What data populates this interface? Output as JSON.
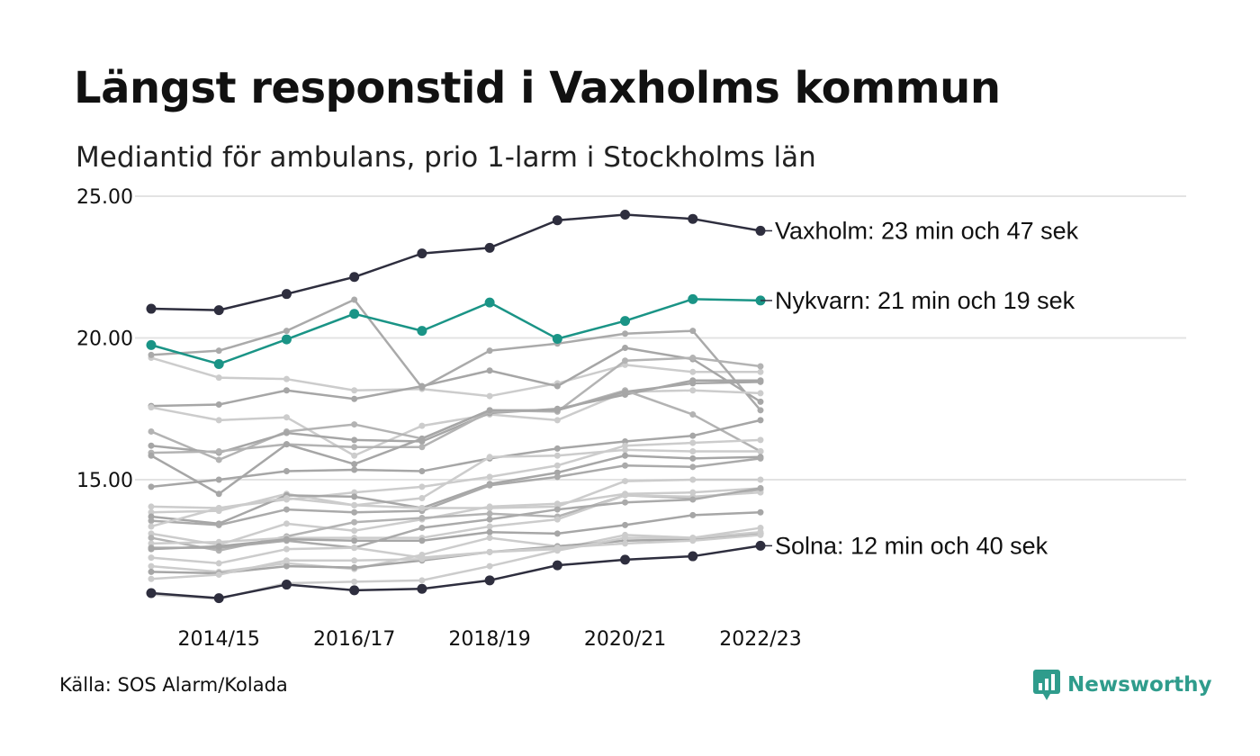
{
  "header": {
    "title": "Längst responstid i Vaxholms kommun",
    "subtitle": "Mediantid för ambulans, prio 1-larm i Stockholms län"
  },
  "footer": {
    "source": "Källa: SOS Alarm/Kolada",
    "brand": "Newsworthy"
  },
  "colors": {
    "dark": "#2e2e3e",
    "accent": "#1a9486",
    "grey_light": "#cccccc",
    "grey_dark": "#a6a6a6",
    "grid": "#e3e3e3",
    "brand": "#2f9c8c"
  },
  "icons": {
    "brand": "newsworthy-chart-bubble-icon"
  },
  "chart_data": {
    "type": "line",
    "x": [
      "2013/14",
      "2014/15",
      "2015/16",
      "2016/17",
      "2017/18",
      "2018/19",
      "2019/20",
      "2020/21",
      "2021/22",
      "2022/23"
    ],
    "x_tick_labels": [
      "2014/15",
      "2016/17",
      "2018/19",
      "2020/21",
      "2022/23"
    ],
    "ylim": [
      10.5,
      25.5
    ],
    "y_ticks": [
      15,
      20,
      25
    ],
    "y_tick_labels": [
      "15.00",
      "20.00",
      "25.00"
    ],
    "grid": true,
    "highlight_series": [
      {
        "name": "Vaxholm",
        "label": "Vaxholm: 23 min och 47 sek",
        "color": "#2e2e3e",
        "values": [
          21.03,
          20.98,
          21.55,
          22.15,
          22.98,
          23.18,
          24.15,
          24.35,
          24.2,
          23.78
        ]
      },
      {
        "name": "Nykvarn",
        "label": "Nykvarn: 21 min och 19 sek",
        "color": "#1a9486",
        "values": [
          19.75,
          19.08,
          19.95,
          20.85,
          20.25,
          21.25,
          19.97,
          20.6,
          21.37,
          21.32
        ]
      },
      {
        "name": "Solna",
        "label": "Solna: 12 min och 40 sek",
        "color": "#2e2e3e",
        "values": [
          11.0,
          10.82,
          11.3,
          11.1,
          11.15,
          11.45,
          11.98,
          12.18,
          12.3,
          12.67
        ]
      }
    ],
    "other_series": [
      {
        "values": [
          19.3,
          18.6,
          18.55,
          18.15,
          18.2,
          17.95,
          18.4,
          19.05,
          18.8,
          18.8
        ],
        "color": "#cccccc"
      },
      {
        "values": [
          19.4,
          19.55,
          20.25,
          21.35,
          18.25,
          19.55,
          19.8,
          20.15,
          20.25,
          17.45
        ],
        "color": "#aaaaaa"
      },
      {
        "values": [
          17.6,
          17.65,
          18.15,
          17.85,
          18.3,
          18.85,
          18.3,
          19.65,
          19.25,
          17.75
        ],
        "color": "#a6a6a6"
      },
      {
        "values": [
          17.55,
          17.1,
          17.2,
          15.85,
          16.9,
          17.3,
          17.1,
          18.1,
          18.15,
          18.05
        ],
        "color": "#cccccc"
      },
      {
        "values": [
          16.7,
          15.7,
          16.7,
          16.95,
          16.45,
          17.45,
          17.4,
          19.2,
          19.3,
          19.0
        ],
        "color": "#b3b3b3"
      },
      {
        "values": [
          16.2,
          15.95,
          16.65,
          16.4,
          16.35,
          17.35,
          17.5,
          18.0,
          18.5,
          18.5
        ],
        "color": "#a6a6a6"
      },
      {
        "values": [
          15.95,
          16.0,
          16.25,
          16.15,
          16.15,
          17.4,
          17.45,
          18.15,
          17.3,
          16.0
        ],
        "color": "#b3b3b3"
      },
      {
        "values": [
          15.85,
          14.5,
          16.25,
          15.55,
          16.45,
          17.45,
          17.45,
          18.1,
          18.4,
          18.45
        ],
        "color": "#a6a6a6"
      },
      {
        "values": [
          14.75,
          15.0,
          15.3,
          15.35,
          15.3,
          15.75,
          16.1,
          16.35,
          16.55,
          17.1
        ],
        "color": "#a6a6a6"
      },
      {
        "values": [
          14.05,
          14.0,
          14.3,
          14.55,
          14.75,
          15.1,
          15.5,
          16.2,
          16.3,
          16.4
        ],
        "color": "#cccccc"
      },
      {
        "values": [
          13.85,
          13.9,
          14.5,
          14.1,
          14.35,
          15.8,
          15.85,
          16.05,
          16.0,
          16.0
        ],
        "color": "#cccccc"
      },
      {
        "values": [
          13.7,
          13.45,
          14.45,
          14.4,
          14.0,
          14.85,
          15.25,
          15.85,
          15.75,
          15.8
        ],
        "color": "#a6a6a6"
      },
      {
        "values": [
          13.55,
          13.4,
          13.95,
          13.85,
          13.9,
          14.8,
          15.1,
          15.5,
          15.45,
          15.75
        ],
        "color": "#aaaaaa"
      },
      {
        "values": [
          13.35,
          14.0,
          14.35,
          14.1,
          14.0,
          14.0,
          14.05,
          14.95,
          15.0,
          15.0
        ],
        "color": "#cccccc"
      },
      {
        "values": [
          13.1,
          12.7,
          13.45,
          13.2,
          13.6,
          14.05,
          14.15,
          14.5,
          14.55,
          14.7
        ],
        "color": "#cccccc"
      },
      {
        "values": [
          12.95,
          12.5,
          13.0,
          13.5,
          13.65,
          13.8,
          13.7,
          14.45,
          14.35,
          14.65
        ],
        "color": "#b3b3b3"
      },
      {
        "values": [
          12.75,
          12.8,
          12.95,
          12.95,
          12.95,
          13.35,
          13.6,
          14.45,
          14.4,
          14.55
        ],
        "color": "#cccccc"
      },
      {
        "values": [
          12.6,
          12.6,
          12.85,
          12.6,
          13.3,
          13.6,
          13.95,
          14.2,
          14.3,
          14.7
        ],
        "color": "#aaaaaa"
      },
      {
        "values": [
          12.55,
          12.65,
          12.9,
          12.85,
          12.85,
          13.15,
          13.1,
          13.4,
          13.75,
          13.85
        ],
        "color": "#a6a6a6"
      },
      {
        "values": [
          12.25,
          12.05,
          12.55,
          12.6,
          12.25,
          12.45,
          12.55,
          13.05,
          12.95,
          13.3
        ],
        "color": "#cccccc"
      },
      {
        "values": [
          11.95,
          11.75,
          12.05,
          11.85,
          12.35,
          12.95,
          12.65,
          12.85,
          12.9,
          13.1
        ],
        "color": "#cccccc"
      },
      {
        "values": [
          11.75,
          11.7,
          11.95,
          11.9,
          12.15,
          12.45,
          12.65,
          12.85,
          12.9,
          13.1
        ],
        "color": "#a6a6a6"
      },
      {
        "values": [
          11.5,
          11.65,
          12.15,
          12.15,
          12.2,
          12.45,
          12.6,
          12.75,
          12.85,
          13.05
        ],
        "color": "#cccccc"
      },
      {
        "values": [
          10.95,
          10.8,
          11.35,
          11.4,
          11.45,
          11.95,
          12.5,
          12.95,
          12.95,
          13.15
        ],
        "color": "#cccccc"
      }
    ]
  }
}
